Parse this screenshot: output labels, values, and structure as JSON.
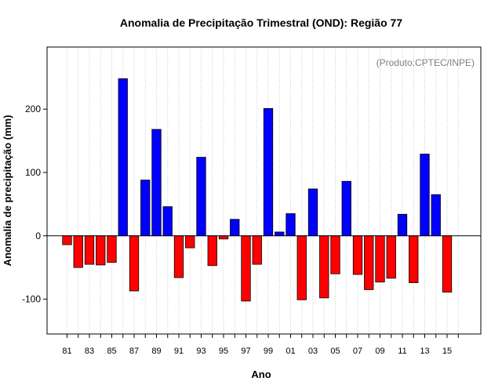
{
  "chart_data": {
    "type": "bar",
    "title": "Anomalia de Precipitação Trimestral (OND): Região 77",
    "xlabel": "Ano",
    "ylabel": "Anomalia de precipitação (mm)",
    "credit": "(Produto:CPTEC/INPE)",
    "ylim": [
      -155,
      298
    ],
    "yticks": [
      -100,
      0,
      100,
      200
    ],
    "ytick_labels": [
      "-100",
      "0",
      "100",
      "200"
    ],
    "categories": [
      "1981",
      "1982",
      "1983",
      "1984",
      "1985",
      "1986",
      "1987",
      "1988",
      "1989",
      "1990",
      "1991",
      "1992",
      "1993",
      "1994",
      "1995",
      "1996",
      "1997",
      "1998",
      "1999",
      "2000",
      "2001",
      "2002",
      "2003",
      "2004",
      "2005",
      "2006",
      "2007",
      "2008",
      "2009",
      "2010",
      "2011",
      "2012",
      "2013",
      "2014",
      "2015"
    ],
    "xtick_labels": [
      "81",
      "83",
      "85",
      "87",
      "89",
      "91",
      "93",
      "95",
      "97",
      "99",
      "01",
      "03",
      "05",
      "07",
      "09",
      "11",
      "13",
      "15"
    ],
    "values": [
      -14,
      -50,
      -45,
      -46,
      -42,
      248,
      -87,
      88,
      168,
      46,
      -66,
      -19,
      124,
      -47,
      -5,
      26,
      -103,
      -45,
      201,
      6,
      35,
      -101,
      74,
      -98,
      -60,
      86,
      -61,
      -85,
      -73,
      -67,
      34,
      -74,
      129,
      65,
      -89
    ],
    "colors": {
      "positive": "#0000ff",
      "negative": "#ff0000",
      "grid": "#c8c8c8",
      "axis": "#000000"
    }
  }
}
